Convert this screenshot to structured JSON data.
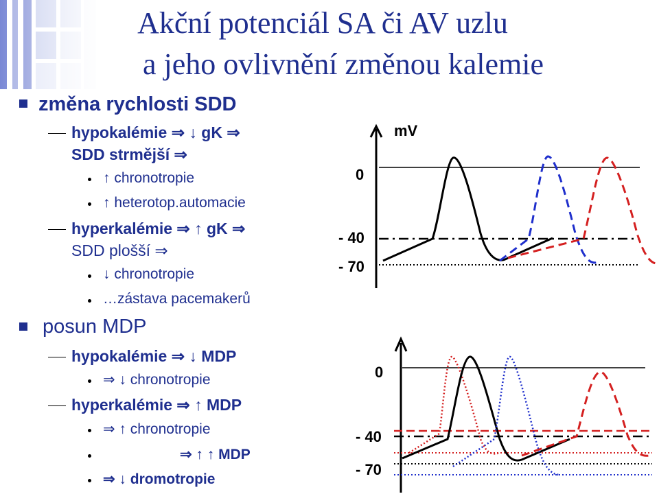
{
  "title": {
    "line1": "Akční potenciál SA či AV uzlu",
    "line2": "a jeho ovlivnění změnou kalemie"
  },
  "bullets": {
    "b1": "změna rychlosti SDD",
    "b1_1_a": "hypokalémie ⇒ ↓ gK ⇒",
    "b1_1_b": "SDD strmější ⇒",
    "b1_1_1": "↑ chronotropie",
    "b1_1_2": "↑ heterotop.automacie",
    "b1_2_a": "hyperkalémie ⇒ ↑ gK ⇒",
    "b1_2_b": "SDD plošší ⇒",
    "b1_2_1": "↓ chronotropie",
    "b1_2_2": "…zástava pacemakerů",
    "b2": "posun MDP",
    "b2_1": "hypokalémie ⇒ ↓ MDP",
    "b2_1_1": "⇒ ↓ chronotropie",
    "b2_2": "hyperkalémie ⇒ ↑ MDP",
    "b2_2_1": "⇒ ↑ chronotropie",
    "b2_2_2": "⇒ ↑ ↑ MDP",
    "b2_2_3": "⇒ ↓ dromotropie"
  },
  "diagram1": {
    "unit": "mV",
    "zero": "0",
    "minus40": "- 40",
    "minus70": "- 70"
  },
  "diagram2": {
    "zero": "0",
    "minus40": "- 40",
    "minus70": "- 70"
  },
  "colors": {
    "title": "#1f2f8f",
    "blue": "#1f2fcc",
    "red": "#d42020",
    "black": "#000000"
  }
}
